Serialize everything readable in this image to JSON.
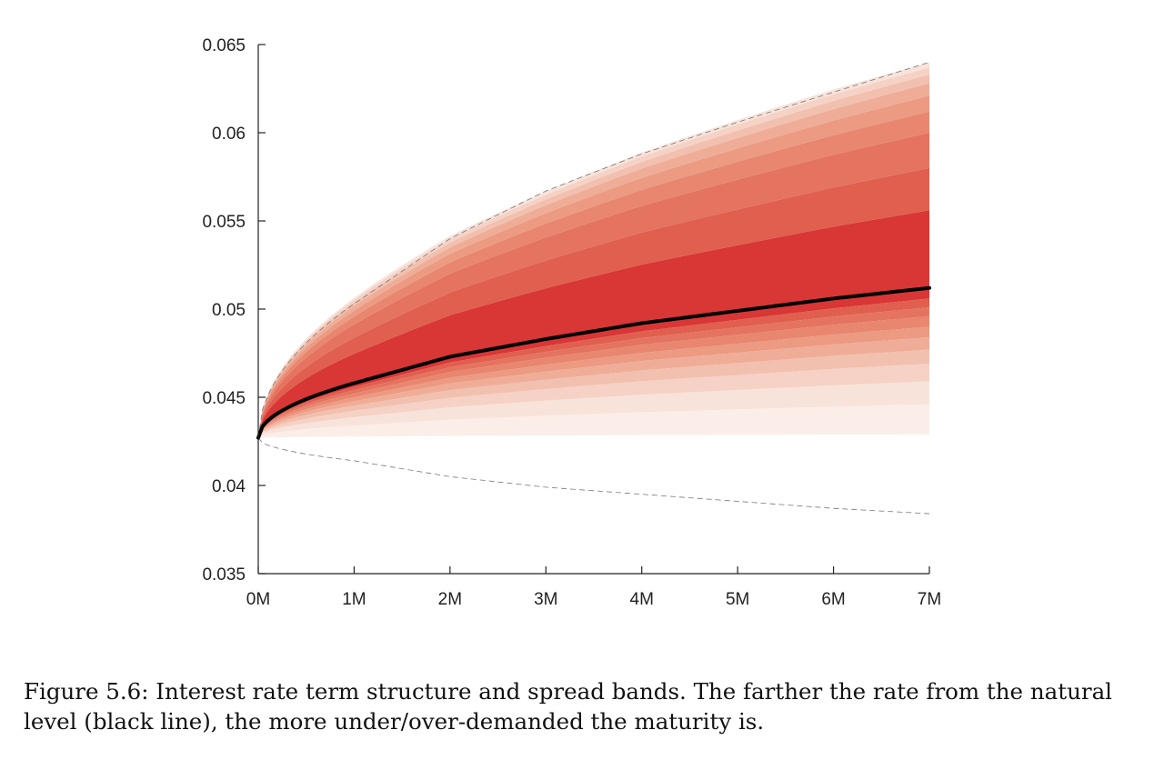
{
  "chart_data": {
    "type": "area",
    "x_ticks": [
      "0M",
      "1M",
      "2M",
      "3M",
      "4M",
      "5M",
      "6M",
      "7M"
    ],
    "y_ticks": [
      "0.035",
      "0.04",
      "0.045",
      "0.05",
      "0.055",
      "0.06",
      "0.065"
    ],
    "xlim": [
      0,
      7
    ],
    "ylim": [
      0.035,
      0.065
    ],
    "x_unit": "months",
    "grid": false,
    "natural_line": {
      "start": 0.0427,
      "values_at_ticks": [
        0.0427,
        0.0458,
        0.0473,
        0.0483,
        0.0492,
        0.0499,
        0.0506,
        0.0512
      ]
    },
    "upper_envelope_at_ticks": [
      0.0427,
      0.0503,
      0.054,
      0.0567,
      0.0588,
      0.0606,
      0.0623,
      0.064
    ],
    "lower_envelope_at_ticks": [
      0.0427,
      0.0414,
      0.0405,
      0.0399,
      0.0395,
      0.0391,
      0.0387,
      0.0384
    ],
    "upper_band_edges_at_7M": [
      0.0512,
      0.0556,
      0.058,
      0.06,
      0.0612,
      0.0621,
      0.0628,
      0.0633,
      0.0637,
      0.064
    ],
    "lower_band_edges_at_7M": [
      0.0512,
      0.0506,
      0.0501,
      0.0496,
      0.049,
      0.0484,
      0.0477,
      0.0469,
      0.0459,
      0.0446,
      0.0429
    ],
    "band_colors": [
      "#d93636",
      "#e05f4f",
      "#e4735f",
      "#e8866f",
      "#ec9a82",
      "#efad98",
      "#f2c0ae",
      "#f5d2c5",
      "#f8e3da",
      "#fbeee8",
      "#fdf5f1"
    ],
    "line_color": "#000000",
    "envelope_style": "dashed"
  },
  "caption": "Figure 5.6: Interest rate term structure and spread bands. The farther the rate from the natural level (black line), the more under/over-demanded the maturity is."
}
